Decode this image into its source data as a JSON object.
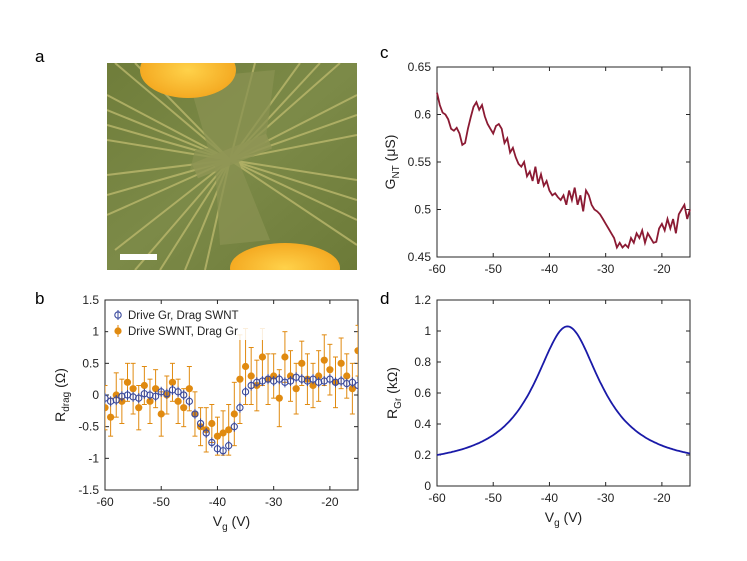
{
  "panels": {
    "a": "a",
    "b": "b",
    "c": "c",
    "d": "d"
  },
  "micrograph": {
    "description_icon": "optical-micrograph-icon"
  },
  "chart_data": [
    {
      "id": "b",
      "type": "scatter",
      "ylabel_main": "R",
      "ylabel_sub": "drag",
      "ylabel_unit": "(Ω)",
      "xlabel_main": "V",
      "xlabel_sub": "g",
      "xlabel_unit": "(V)",
      "xlim": [
        -60,
        -15
      ],
      "ylim": [
        -1.5,
        1.5
      ],
      "xticks": [
        -60,
        -50,
        -40,
        -30,
        -20
      ],
      "yticks": [
        -1.5,
        -1,
        -0.5,
        0,
        0.5,
        1,
        1.5
      ],
      "ytick_labels": [
        "-1.5",
        "-1",
        "-0.5",
        "0",
        "0.5",
        "1",
        "1.5"
      ],
      "colors": {
        "drive_gr": "#3a4a9e",
        "drive_swnt": "#e08a10"
      },
      "series": [
        {
          "name": "Drive Gr, Drag SWNT",
          "marker": "open-circle",
          "x": [
            -60,
            -59,
            -58,
            -57,
            -56,
            -55,
            -54,
            -53,
            -52,
            -51,
            -50,
            -49,
            -48,
            -47,
            -46,
            -45,
            -44,
            -43,
            -42,
            -41,
            -40,
            -39,
            -38,
            -37,
            -36,
            -35,
            -34,
            -33,
            -32,
            -31,
            -30,
            -29,
            -28,
            -27,
            -26,
            -25,
            -24,
            -23,
            -22,
            -21,
            -20,
            -19,
            -18,
            -17,
            -16,
            -15
          ],
          "y": [
            -0.05,
            -0.1,
            -0.08,
            -0.02,
            0.0,
            -0.03,
            -0.05,
            0.02,
            0.0,
            -0.02,
            0.05,
            0.02,
            0.08,
            0.05,
            0.0,
            -0.1,
            -0.3,
            -0.45,
            -0.6,
            -0.75,
            -0.85,
            -0.88,
            -0.8,
            -0.5,
            -0.2,
            0.05,
            0.15,
            0.2,
            0.22,
            0.25,
            0.22,
            0.25,
            0.2,
            0.22,
            0.28,
            0.25,
            0.22,
            0.25,
            0.2,
            0.22,
            0.25,
            0.2,
            0.22,
            0.18,
            0.2,
            0.15
          ],
          "err": [
            0.08,
            0.08,
            0.08,
            0.08,
            0.08,
            0.08,
            0.08,
            0.08,
            0.08,
            0.08,
            0.08,
            0.08,
            0.08,
            0.08,
            0.08,
            0.08,
            0.08,
            0.08,
            0.08,
            0.08,
            0.08,
            0.08,
            0.08,
            0.08,
            0.08,
            0.08,
            0.08,
            0.08,
            0.08,
            0.08,
            0.08,
            0.08,
            0.08,
            0.08,
            0.08,
            0.08,
            0.08,
            0.08,
            0.08,
            0.08,
            0.08,
            0.08,
            0.08,
            0.08,
            0.08,
            0.08
          ]
        },
        {
          "name": "Drive SWNT, Drag Gr",
          "marker": "filled-circle",
          "x": [
            -60,
            -59,
            -58,
            -57,
            -56,
            -55,
            -54,
            -53,
            -52,
            -51,
            -50,
            -49,
            -48,
            -47,
            -46,
            -45,
            -44,
            -43,
            -42,
            -41,
            -40,
            -39,
            -38,
            -37,
            -36,
            -35,
            -34,
            -33,
            -32,
            -31,
            -30,
            -29,
            -28,
            -27,
            -26,
            -25,
            -24,
            -23,
            -22,
            -21,
            -20,
            -19,
            -18,
            -17,
            -16,
            -15
          ],
          "y": [
            -0.2,
            -0.35,
            0.0,
            -0.1,
            0.2,
            0.1,
            -0.2,
            0.15,
            -0.1,
            0.1,
            -0.3,
            0.0,
            0.2,
            -0.1,
            -0.2,
            0.1,
            -0.3,
            -0.5,
            -0.55,
            -0.45,
            -0.65,
            -0.6,
            -0.55,
            -0.3,
            0.25,
            0.45,
            0.3,
            0.15,
            0.6,
            0.25,
            0.3,
            -0.05,
            0.6,
            0.3,
            0.1,
            0.5,
            0.25,
            0.15,
            0.3,
            0.55,
            0.4,
            0.2,
            0.5,
            0.3,
            0.1,
            0.7
          ],
          "err": [
            0.35,
            0.3,
            0.35,
            0.35,
            0.3,
            0.4,
            0.35,
            0.3,
            0.35,
            0.3,
            0.35,
            0.3,
            0.3,
            0.35,
            0.3,
            0.35,
            0.35,
            0.3,
            0.35,
            0.3,
            0.3,
            0.35,
            0.4,
            0.5,
            0.7,
            0.6,
            0.45,
            0.4,
            0.45,
            0.4,
            0.35,
            0.45,
            0.4,
            0.4,
            0.4,
            0.35,
            0.4,
            0.35,
            0.4,
            0.4,
            0.4,
            0.4,
            0.4,
            0.35,
            0.4,
            0.4
          ]
        }
      ]
    },
    {
      "id": "c",
      "type": "line",
      "ylabel_main": "G",
      "ylabel_sub": "NT",
      "ylabel_unit": "(μS)",
      "xlim": [
        -60,
        -15
      ],
      "ylim": [
        0.45,
        0.65
      ],
      "xticks": [
        -60,
        -50,
        -40,
        -30,
        -20
      ],
      "yticks": [
        0.45,
        0.5,
        0.55,
        0.6,
        0.65
      ],
      "ytick_labels": [
        "0.45",
        "0.5",
        "0.55",
        "0.6",
        "0.65"
      ],
      "color": "#8b1a33",
      "x": [
        -60,
        -59.5,
        -59,
        -58.5,
        -58,
        -57.5,
        -57,
        -56.5,
        -56,
        -55.5,
        -55,
        -54.5,
        -54,
        -53.5,
        -53,
        -52.5,
        -52,
        -51.5,
        -51,
        -50.5,
        -50,
        -49.5,
        -49,
        -48.5,
        -48,
        -47.5,
        -47,
        -46.5,
        -46,
        -45.5,
        -45,
        -44.5,
        -44,
        -43.5,
        -43,
        -42.5,
        -42,
        -41.5,
        -41,
        -40.5,
        -40,
        -39.5,
        -39,
        -38.5,
        -38,
        -37.5,
        -37,
        -36.5,
        -36,
        -35.5,
        -35,
        -34.5,
        -34,
        -33.5,
        -33,
        -32.5,
        -32,
        -31.5,
        -31,
        -30.5,
        -30,
        -29.5,
        -29,
        -28.5,
        -28,
        -27.5,
        -27,
        -26.5,
        -26,
        -25.5,
        -25,
        -24.5,
        -24,
        -23.5,
        -23,
        -22.5,
        -22,
        -21.5,
        -21,
        -20.5,
        -20,
        -19.5,
        -19,
        -18.5,
        -18,
        -17.5,
        -17,
        -16.5,
        -16,
        -15.5,
        -15
      ],
      "y": [
        0.623,
        0.61,
        0.602,
        0.6,
        0.595,
        0.585,
        0.583,
        0.586,
        0.58,
        0.568,
        0.57,
        0.585,
        0.597,
        0.608,
        0.613,
        0.605,
        0.61,
        0.598,
        0.59,
        0.585,
        0.58,
        0.588,
        0.59,
        0.585,
        0.57,
        0.575,
        0.56,
        0.565,
        0.555,
        0.548,
        0.545,
        0.55,
        0.535,
        0.54,
        0.53,
        0.545,
        0.527,
        0.537,
        0.525,
        0.53,
        0.52,
        0.515,
        0.517,
        0.513,
        0.51,
        0.515,
        0.505,
        0.52,
        0.51,
        0.523,
        0.505,
        0.515,
        0.498,
        0.52,
        0.515,
        0.505,
        0.5,
        0.498,
        0.495,
        0.49,
        0.485,
        0.48,
        0.475,
        0.47,
        0.46,
        0.465,
        0.46,
        0.463,
        0.46,
        0.47,
        0.465,
        0.475,
        0.47,
        0.478,
        0.465,
        0.475,
        0.47,
        0.465,
        0.466,
        0.48,
        0.485,
        0.478,
        0.49,
        0.48,
        0.49,
        0.475,
        0.495,
        0.5,
        0.505,
        0.49,
        0.5
      ]
    },
    {
      "id": "d",
      "type": "line",
      "ylabel_main": "R",
      "ylabel_sub": "Gr",
      "ylabel_unit": "(kΩ)",
      "xlabel_main": "V",
      "xlabel_sub": "g",
      "xlabel_unit": "(V)",
      "xlim": [
        -60,
        -15
      ],
      "ylim": [
        0,
        1.2
      ],
      "xticks": [
        -60,
        -50,
        -40,
        -30,
        -20
      ],
      "yticks": [
        0,
        0.2,
        0.4,
        0.6,
        0.8,
        1,
        1.2
      ],
      "ytick_labels": [
        "0",
        "0.2",
        "0.4",
        "0.6",
        "0.8",
        "1",
        "1.2"
      ],
      "color": "#1a1aa8",
      "model": "lorentzian",
      "peak_x": -36.8,
      "peak_y": 1.03,
      "baseline": 0.12,
      "width": 7.2
    }
  ]
}
